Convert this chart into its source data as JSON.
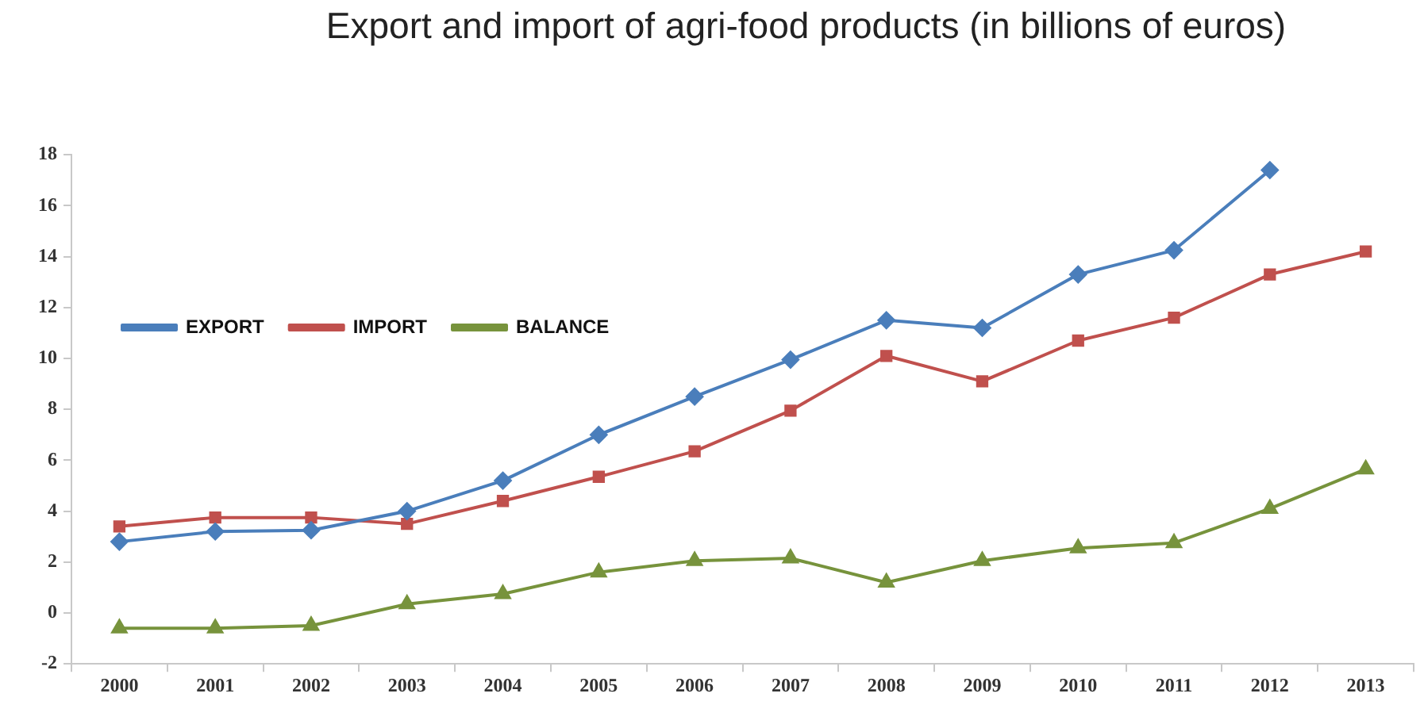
{
  "chart_data": {
    "type": "line",
    "title": "Export and import of agri-food products (in billions of euros)",
    "categories": [
      "2000",
      "2001",
      "2002",
      "2003",
      "2004",
      "2005",
      "2006",
      "2007",
      "2008",
      "2009",
      "2010",
      "2011",
      "2012",
      "2013"
    ],
    "series": [
      {
        "name": "EXPORT",
        "color": "#4a7ebb",
        "marker": "diamond",
        "values": [
          2.8,
          3.2,
          3.25,
          4.0,
          5.2,
          7.0,
          8.5,
          9.95,
          11.5,
          11.2,
          13.3,
          14.25,
          17.4,
          null
        ]
      },
      {
        "name": "IMPORT",
        "color": "#c0504d",
        "marker": "square",
        "values": [
          3.4,
          3.75,
          3.75,
          3.5,
          4.4,
          5.35,
          6.35,
          7.95,
          10.1,
          9.1,
          10.7,
          11.6,
          13.3,
          14.2
        ]
      },
      {
        "name": "BALANCE",
        "color": "#77933c",
        "marker": "triangle",
        "values": [
          -0.6,
          -0.6,
          -0.5,
          0.35,
          0.75,
          1.6,
          2.05,
          2.15,
          1.2,
          2.05,
          2.55,
          2.75,
          4.1,
          5.65
        ]
      }
    ],
    "ylim": [
      -2,
      18
    ],
    "yticks": [
      -2,
      0,
      2,
      4,
      6,
      8,
      10,
      12,
      14,
      16,
      18
    ],
    "grid": false,
    "legend": "left",
    "line_style": "solid"
  }
}
